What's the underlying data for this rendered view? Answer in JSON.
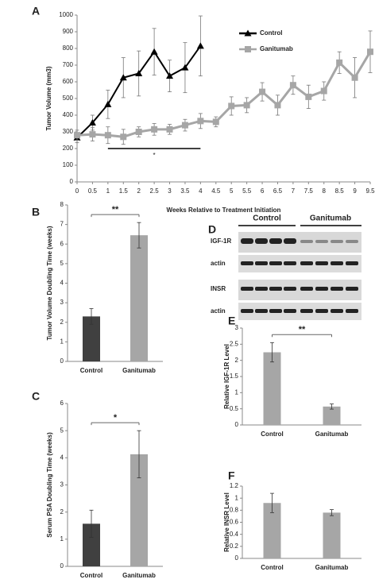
{
  "chart_data": [
    {
      "type": "line",
      "panel": "A",
      "ylabel": "Tumor Volume (mm3)",
      "xlabel": "Weeks Relative to Treatment Initiation",
      "xlim": [
        0,
        9.5
      ],
      "xticks": [
        0,
        0.5,
        1,
        1.5,
        2,
        2.5,
        3,
        3.5,
        4,
        4.5,
        5,
        5.5,
        6,
        6.5,
        7,
        7.5,
        8,
        8.5,
        9,
        9.5
      ],
      "ylim": [
        0,
        1000
      ],
      "yticks": [
        0,
        100,
        200,
        300,
        400,
        500,
        600,
        700,
        800,
        900,
        1000
      ],
      "legend": "upper right",
      "significance": {
        "label": "*",
        "x": [
          1,
          4
        ]
      },
      "series": [
        {
          "name": "Control",
          "color": "#000000",
          "marker": "triangle",
          "x": [
            0,
            0.5,
            1,
            1.5,
            2,
            2.5,
            3,
            3.5,
            4
          ],
          "values": [
            265,
            355,
            465,
            625,
            650,
            780,
            635,
            685,
            815
          ],
          "errors": [
            30,
            45,
            85,
            120,
            135,
            140,
            95,
            150,
            180
          ]
        },
        {
          "name": "Ganitumab",
          "color": "#a6a6a6",
          "marker": "square",
          "x": [
            0,
            0.5,
            1,
            1.5,
            2,
            2.5,
            3,
            3.5,
            4,
            4.5,
            5,
            5.5,
            6,
            6.5,
            7,
            7.5,
            8,
            8.5,
            9,
            9.5
          ],
          "values": [
            280,
            285,
            280,
            270,
            300,
            315,
            315,
            340,
            365,
            360,
            455,
            460,
            540,
            460,
            580,
            510,
            545,
            715,
            625,
            780
          ],
          "errors": [
            30,
            40,
            50,
            45,
            30,
            35,
            30,
            35,
            45,
            30,
            55,
            45,
            55,
            60,
            55,
            70,
            55,
            65,
            120,
            125
          ]
        }
      ]
    },
    {
      "type": "bar",
      "panel": "B",
      "ylabel": "Tumor Volume Doubling Time (weeks)",
      "categories": [
        "Control",
        "Ganitumab"
      ],
      "values": [
        2.3,
        6.45
      ],
      "errors": [
        0.4,
        0.65
      ],
      "colors": [
        "#404040",
        "#a6a6a6"
      ],
      "ylim": [
        0,
        8
      ],
      "yticks": [
        0,
        1,
        2,
        3,
        4,
        5,
        6,
        7,
        8
      ],
      "significance": "**"
    },
    {
      "type": "bar",
      "panel": "C",
      "ylabel": "Serum PSA Doubling Time (weeks)",
      "categories": [
        "Control",
        "Ganitumab"
      ],
      "values": [
        1.57,
        4.13
      ],
      "errors": [
        0.5,
        0.87
      ],
      "colors": [
        "#404040",
        "#a6a6a6"
      ],
      "ylim": [
        0,
        6
      ],
      "yticks": [
        0,
        1,
        2,
        3,
        4,
        5,
        6
      ],
      "significance": "*"
    },
    {
      "type": "bar",
      "panel": "E",
      "ylabel": "Relative IGF-1R Level",
      "categories": [
        "Control",
        "Ganitumab"
      ],
      "values": [
        2.25,
        0.57
      ],
      "errors": [
        0.3,
        0.08
      ],
      "colors": [
        "#a6a6a6",
        "#a6a6a6"
      ],
      "ylim": [
        0,
        3
      ],
      "yticks": [
        0,
        0.5,
        1,
        1.5,
        2,
        2.5,
        3
      ],
      "significance": "**"
    },
    {
      "type": "bar",
      "panel": "F",
      "ylabel": "Relative INSR Level",
      "categories": [
        "Control",
        "Ganitumab"
      ],
      "values": [
        0.92,
        0.76
      ],
      "errors": [
        0.16,
        0.05
      ],
      "colors": [
        "#a6a6a6",
        "#a6a6a6"
      ],
      "ylim": [
        0,
        1.2
      ],
      "yticks": [
        0,
        0.2,
        0.4,
        0.6,
        0.8,
        1,
        1.2
      ]
    }
  ],
  "blot": {
    "panel": "D",
    "groups": [
      "Control",
      "Ganitumab"
    ],
    "rows": [
      "IGF-1R",
      "actin",
      "INSR",
      "actin"
    ]
  }
}
